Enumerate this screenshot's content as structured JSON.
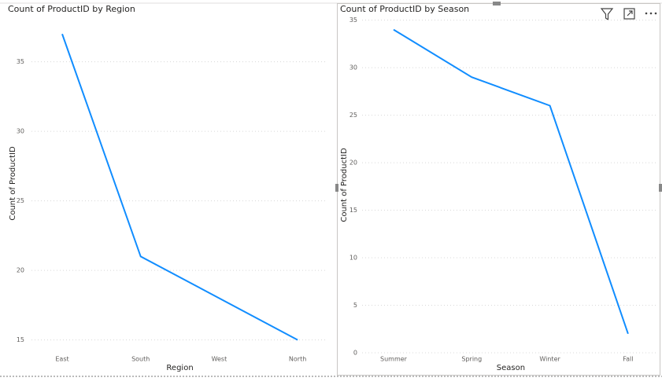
{
  "chart_data": [
    {
      "type": "line",
      "title": "Count of ProductID by Region",
      "x_label": "Region",
      "y_label": "Count of ProductID",
      "categories": [
        "East",
        "South",
        "West",
        "North"
      ],
      "values": [
        37,
        21,
        18,
        15
      ],
      "color": "#118dff",
      "ylim": [
        14.3,
        38.2
      ],
      "yticks": [
        15,
        20,
        25,
        30,
        35
      ],
      "grid": true
    },
    {
      "type": "line",
      "title": "Count of ProductID by Season",
      "x_label": "Season",
      "y_label": "Count of ProductID",
      "categories": [
        "Summer",
        "Spring",
        "Winter",
        "Fall"
      ],
      "values": [
        34,
        29,
        26,
        2
      ],
      "color": "#118dff",
      "ylim": [
        0,
        35.3
      ],
      "yticks": [
        0,
        5,
        10,
        15,
        20,
        25,
        30,
        35
      ],
      "grid": true
    }
  ]
}
